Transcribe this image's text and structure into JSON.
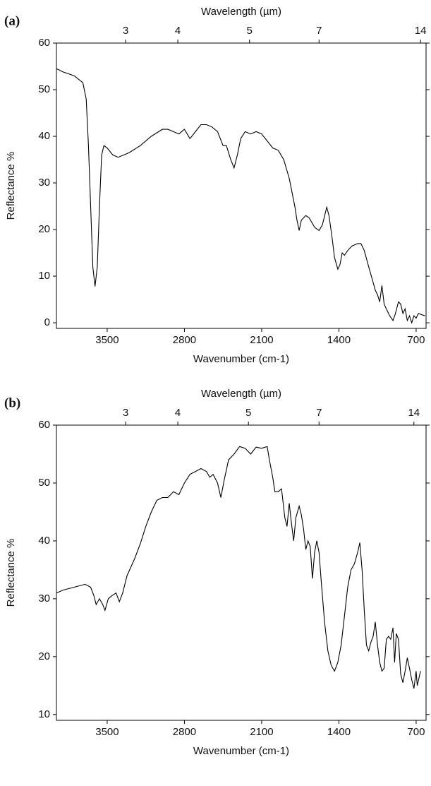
{
  "chart_data": [
    {
      "type": "line",
      "panel_label": "(a)",
      "x2_label": "Wavelength (µm)",
      "x_label": "Wavenumber (cm-1)",
      "y_label": "Reflectance %",
      "xlim": [
        3960,
        610
      ],
      "xticks": [
        3500,
        2800,
        2100,
        1400,
        700
      ],
      "x2ticks": [
        {
          "value": 3333,
          "label": "3"
        },
        {
          "value": 2860,
          "label": "4"
        },
        {
          "value": 2210,
          "label": "5"
        },
        {
          "value": 1580,
          "label": "7"
        },
        {
          "value": 660,
          "label": "14"
        }
      ],
      "ylim": [
        -1.2,
        60
      ],
      "yticks": [
        0,
        10,
        20,
        30,
        40,
        50,
        60
      ],
      "series": [
        {
          "color": "#000000",
          "x": [
            3960,
            3900,
            3800,
            3720,
            3690,
            3670,
            3650,
            3630,
            3610,
            3590,
            3570,
            3550,
            3530,
            3500,
            3450,
            3400,
            3300,
            3200,
            3100,
            3000,
            2950,
            2900,
            2850,
            2800,
            2750,
            2700,
            2650,
            2600,
            2550,
            2500,
            2450,
            2420,
            2380,
            2350,
            2320,
            2290,
            2250,
            2200,
            2150,
            2100,
            2050,
            2000,
            1950,
            1900,
            1850,
            1800,
            1780,
            1760,
            1740,
            1700,
            1670,
            1620,
            1580,
            1550,
            1510,
            1490,
            1460,
            1440,
            1410,
            1390,
            1370,
            1350,
            1320,
            1280,
            1230,
            1200,
            1170,
            1130,
            1100,
            1070,
            1050,
            1030,
            1010,
            990,
            970,
            940,
            910,
            890,
            860,
            840,
            820,
            800,
            780,
            760,
            740,
            720,
            700,
            680,
            620
          ],
          "values": [
            54.5,
            53.8,
            53,
            51.5,
            48,
            38,
            25,
            12,
            7.8,
            12,
            25,
            36,
            38,
            37.5,
            36,
            35.5,
            36.5,
            38,
            40,
            41.5,
            41.5,
            41,
            40.5,
            41.5,
            39.5,
            41,
            42.5,
            42.5,
            42,
            41,
            38,
            38,
            35,
            33.2,
            36,
            39.5,
            41,
            40.5,
            41,
            40.5,
            39,
            37.5,
            37,
            35,
            31,
            25,
            22,
            19.8,
            22,
            23,
            22.5,
            20.5,
            19.8,
            21,
            24.8,
            23,
            18,
            14,
            11.5,
            12.5,
            15,
            14.5,
            15.5,
            16.5,
            17,
            17,
            15.5,
            12,
            9.5,
            7,
            6,
            4.5,
            8,
            4,
            3,
            1.5,
            0.5,
            1.8,
            4.5,
            4,
            2,
            3,
            0.5,
            1.5,
            0,
            1.5,
            1,
            2,
            1.5
          ]
        }
      ]
    },
    {
      "type": "line",
      "panel_label": "(b)",
      "x2_label": "Wavelength (µm)",
      "x_label": "Wavenumber (cm-1)",
      "y_label": "Reflectance %",
      "xlim": [
        3960,
        610
      ],
      "xticks": [
        3500,
        2800,
        2100,
        1400,
        700
      ],
      "x2ticks": [
        {
          "value": 3333,
          "label": "3"
        },
        {
          "value": 2860,
          "label": "4"
        },
        {
          "value": 2220,
          "label": "5"
        },
        {
          "value": 1580,
          "label": "7"
        },
        {
          "value": 720,
          "label": "14"
        }
      ],
      "ylim": [
        9,
        60
      ],
      "yticks": [
        10,
        20,
        30,
        40,
        50,
        60
      ],
      "series": [
        {
          "color": "#000000",
          "x": [
            3960,
            3900,
            3800,
            3700,
            3650,
            3620,
            3600,
            3570,
            3540,
            3520,
            3490,
            3460,
            3420,
            3390,
            3360,
            3320,
            3250,
            3200,
            3150,
            3100,
            3050,
            3000,
            2950,
            2900,
            2850,
            2800,
            2750,
            2700,
            2650,
            2600,
            2570,
            2540,
            2500,
            2470,
            2440,
            2400,
            2350,
            2300,
            2250,
            2200,
            2150,
            2100,
            2050,
            2030,
            2000,
            1980,
            1950,
            1920,
            1890,
            1870,
            1850,
            1830,
            1810,
            1790,
            1760,
            1740,
            1720,
            1700,
            1680,
            1660,
            1640,
            1620,
            1600,
            1580,
            1560,
            1530,
            1500,
            1470,
            1440,
            1410,
            1380,
            1350,
            1320,
            1290,
            1260,
            1230,
            1210,
            1190,
            1170,
            1150,
            1130,
            1110,
            1090,
            1070,
            1050,
            1030,
            1010,
            990,
            970,
            950,
            930,
            910,
            895,
            880,
            860,
            840,
            820,
            800,
            780,
            760,
            740,
            720,
            700,
            690,
            660
          ],
          "values": [
            31,
            31.5,
            32,
            32.5,
            32,
            30.5,
            29,
            30,
            29,
            28,
            30,
            30.5,
            31,
            29.5,
            31,
            34,
            37,
            39.5,
            42.5,
            45,
            47,
            47.5,
            47.5,
            48.5,
            48,
            50,
            51.5,
            52,
            52.5,
            52,
            51,
            51.5,
            50,
            47.5,
            50.5,
            54,
            55,
            56.3,
            56,
            55,
            56.2,
            56,
            56.3,
            54,
            51,
            48.5,
            48.5,
            49,
            44,
            42.5,
            46.5,
            43,
            40,
            44,
            46,
            44.5,
            42,
            38.5,
            40,
            39,
            33.5,
            38,
            40,
            38,
            33,
            26,
            21,
            18.5,
            17.5,
            19,
            22,
            27,
            32,
            35,
            36,
            38,
            39.7,
            35,
            28,
            22,
            21,
            22.5,
            23.5,
            26,
            22,
            19,
            17.5,
            18,
            23,
            23.5,
            23,
            25,
            19,
            24,
            23,
            17,
            15.5,
            17.5,
            19.8,
            18,
            16,
            14.5,
            17.5,
            15,
            17.5
          ]
        }
      ]
    }
  ]
}
